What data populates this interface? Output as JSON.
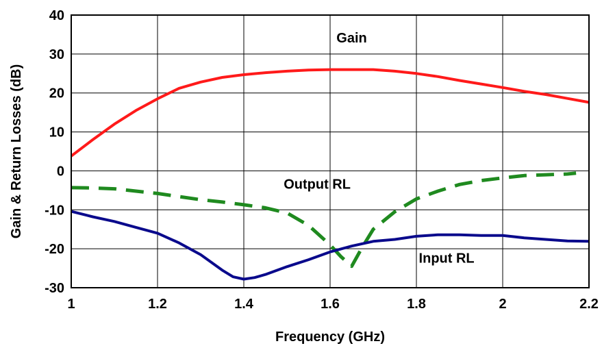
{
  "chart_data": {
    "type": "line",
    "title": "",
    "xlabel": "Frequency (GHz)",
    "ylabel": "Gain & Return Losses (dB)",
    "xlim": [
      1,
      2.2
    ],
    "ylim": [
      -30,
      40
    ],
    "x_ticks": [
      "1",
      "1.2",
      "1.4",
      "1.6",
      "1.8",
      "2",
      "2.2"
    ],
    "y_ticks": [
      "-30",
      "-20",
      "-10",
      "0",
      "10",
      "20",
      "30",
      "40"
    ],
    "grid": true,
    "colors": {
      "gain": "#ff1a1a",
      "output_rl": "#1f8a1f",
      "input_rl": "#0a0a8c",
      "grid": "#000000"
    },
    "series": [
      {
        "name": "Gain",
        "style": "solid",
        "points": [
          [
            1.0,
            3.8
          ],
          [
            1.05,
            8.0
          ],
          [
            1.1,
            12.0
          ],
          [
            1.15,
            15.5
          ],
          [
            1.2,
            18.5
          ],
          [
            1.25,
            21.2
          ],
          [
            1.3,
            22.8
          ],
          [
            1.35,
            24.0
          ],
          [
            1.4,
            24.7
          ],
          [
            1.45,
            25.2
          ],
          [
            1.5,
            25.6
          ],
          [
            1.55,
            25.9
          ],
          [
            1.6,
            26.0
          ],
          [
            1.65,
            26.0
          ],
          [
            1.7,
            26.0
          ],
          [
            1.75,
            25.6
          ],
          [
            1.8,
            25.0
          ],
          [
            1.85,
            24.2
          ],
          [
            1.9,
            23.2
          ],
          [
            1.95,
            22.3
          ],
          [
            2.0,
            21.4
          ],
          [
            2.05,
            20.4
          ],
          [
            2.1,
            19.6
          ],
          [
            2.15,
            18.6
          ],
          [
            2.2,
            17.6
          ]
        ]
      },
      {
        "name": "Output RL",
        "style": "dashed",
        "points": [
          [
            1.0,
            -4.3
          ],
          [
            1.05,
            -4.4
          ],
          [
            1.1,
            -4.6
          ],
          [
            1.15,
            -5.2
          ],
          [
            1.2,
            -5.8
          ],
          [
            1.25,
            -6.6
          ],
          [
            1.3,
            -7.4
          ],
          [
            1.35,
            -8.0
          ],
          [
            1.4,
            -8.7
          ],
          [
            1.45,
            -9.5
          ],
          [
            1.5,
            -10.8
          ],
          [
            1.55,
            -14.0
          ],
          [
            1.6,
            -19.0
          ],
          [
            1.625,
            -22.0
          ],
          [
            1.65,
            -24.5
          ],
          [
            1.675,
            -19.5
          ],
          [
            1.7,
            -15.0
          ],
          [
            1.75,
            -10.5
          ],
          [
            1.8,
            -7.2
          ],
          [
            1.85,
            -5.2
          ],
          [
            1.9,
            -3.5
          ],
          [
            1.95,
            -2.5
          ],
          [
            2.0,
            -1.8
          ],
          [
            2.05,
            -1.2
          ],
          [
            2.1,
            -1.0
          ],
          [
            2.15,
            -0.8
          ],
          [
            2.17,
            -0.6
          ]
        ]
      },
      {
        "name": "Input RL",
        "style": "solid",
        "points": [
          [
            1.0,
            -10.4
          ],
          [
            1.05,
            -11.8
          ],
          [
            1.1,
            -13.0
          ],
          [
            1.15,
            -14.5
          ],
          [
            1.2,
            -16.0
          ],
          [
            1.25,
            -18.5
          ],
          [
            1.3,
            -21.5
          ],
          [
            1.35,
            -25.5
          ],
          [
            1.375,
            -27.2
          ],
          [
            1.4,
            -27.8
          ],
          [
            1.425,
            -27.4
          ],
          [
            1.45,
            -26.6
          ],
          [
            1.5,
            -24.6
          ],
          [
            1.55,
            -22.8
          ],
          [
            1.6,
            -20.8
          ],
          [
            1.65,
            -19.3
          ],
          [
            1.7,
            -18.1
          ],
          [
            1.75,
            -17.6
          ],
          [
            1.8,
            -16.8
          ],
          [
            1.85,
            -16.4
          ],
          [
            1.9,
            -16.4
          ],
          [
            1.95,
            -16.6
          ],
          [
            2.0,
            -16.6
          ],
          [
            2.05,
            -17.2
          ],
          [
            2.1,
            -17.6
          ],
          [
            2.15,
            -18.0
          ],
          [
            2.2,
            -18.1
          ]
        ]
      }
    ],
    "annotations": [
      {
        "text": "Gain",
        "x": 1.65,
        "y": 33
      },
      {
        "text": "Output RL",
        "x": 1.57,
        "y": -4.6
      },
      {
        "text": "Input RL",
        "x": 1.87,
        "y": -23.6
      }
    ]
  }
}
